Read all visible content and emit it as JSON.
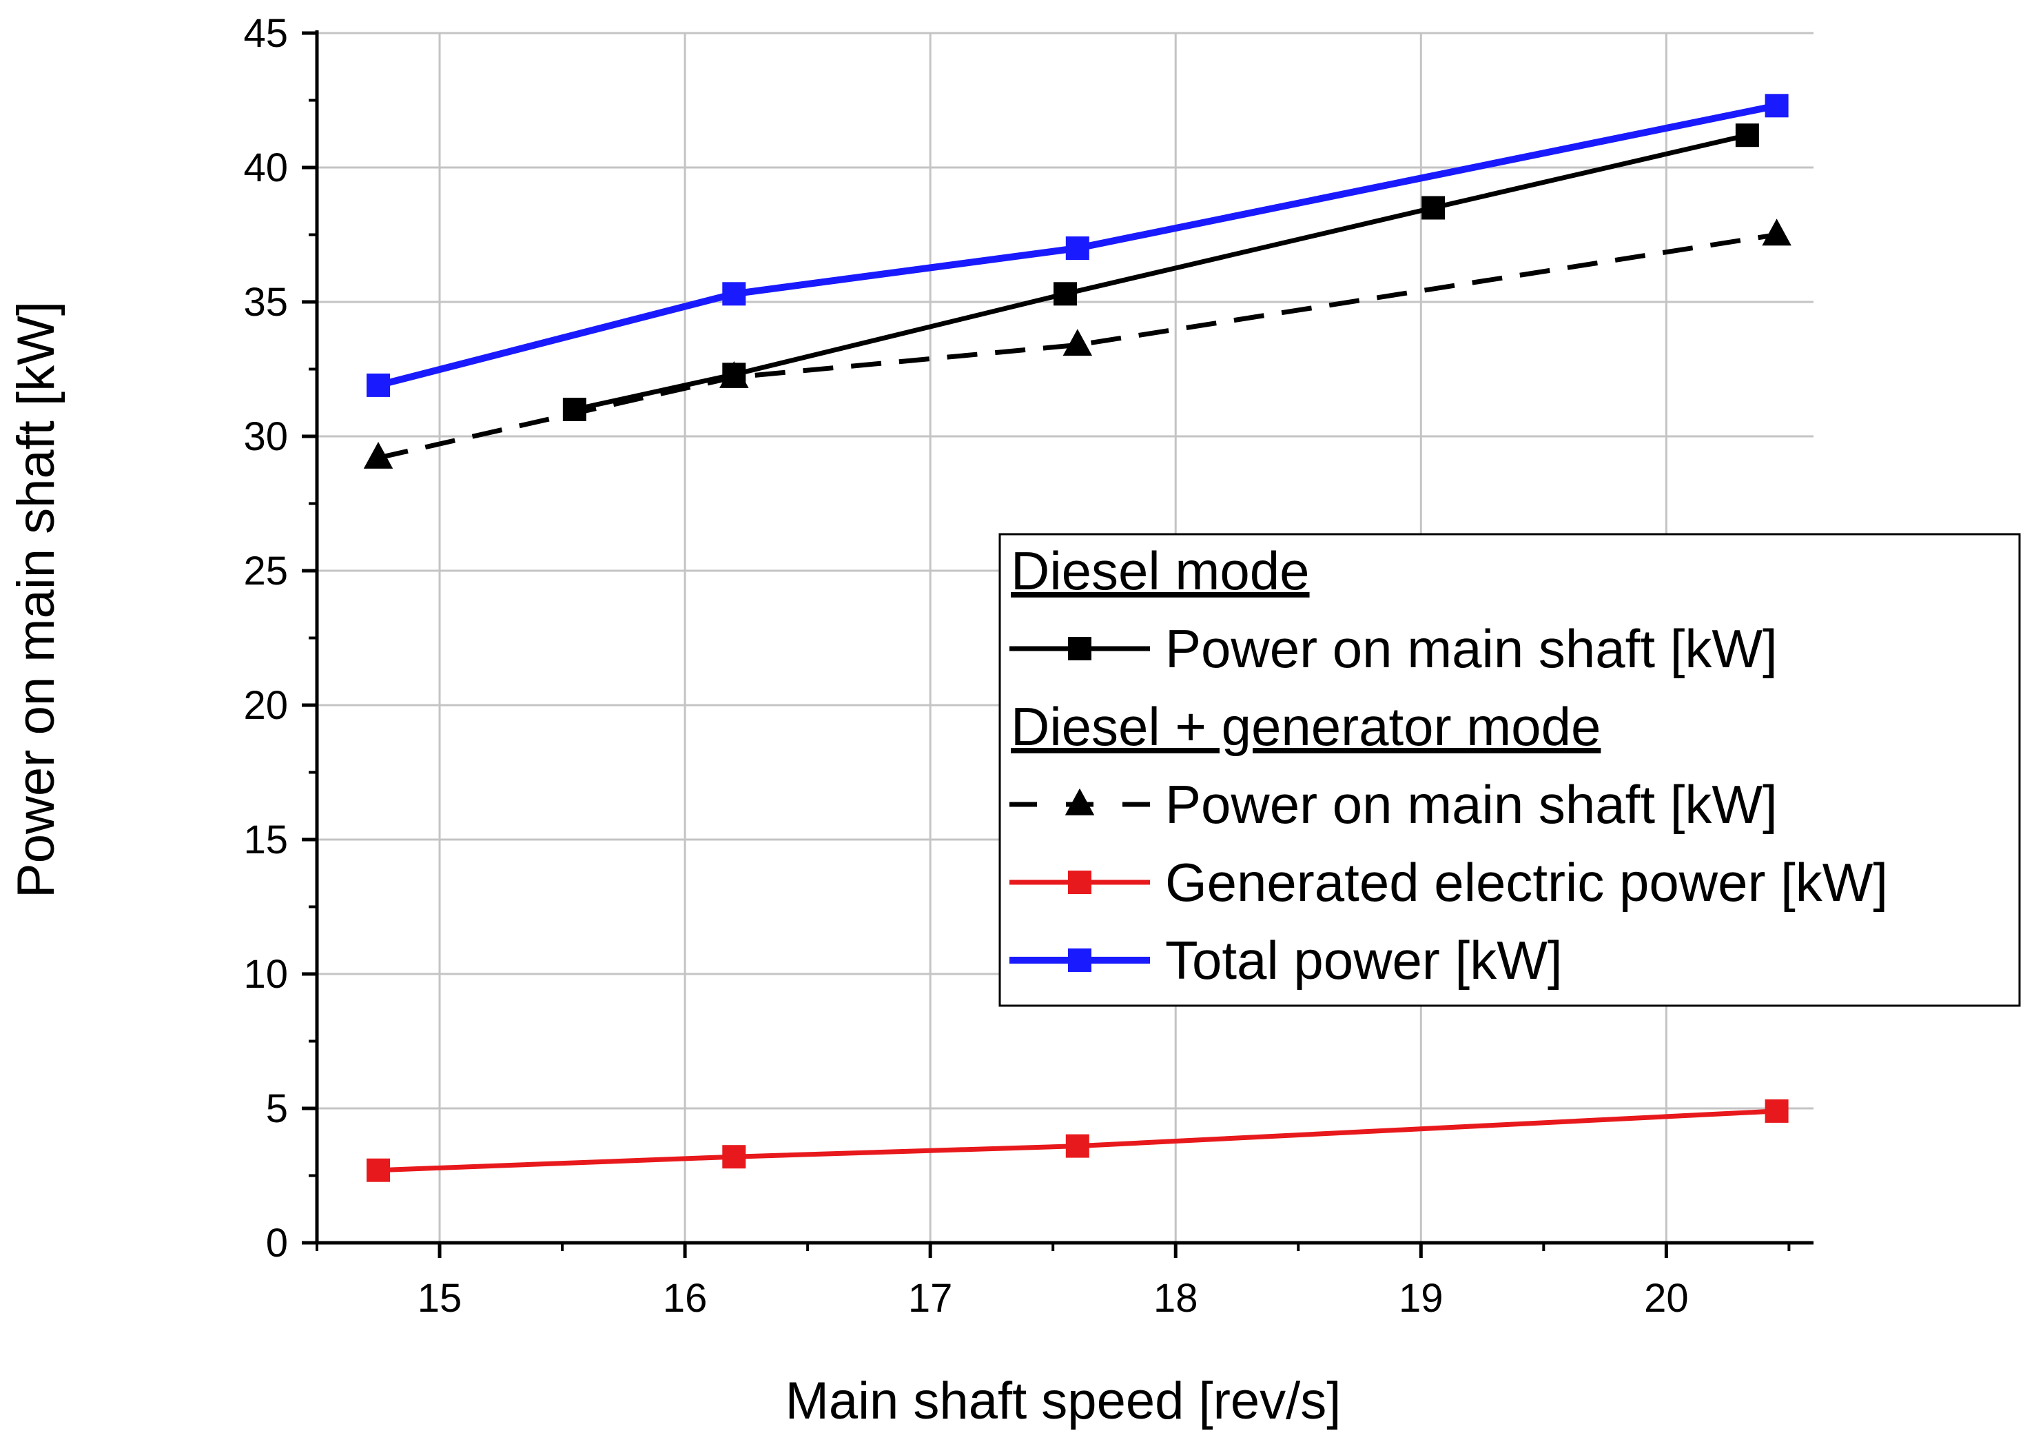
{
  "chart_data": {
    "type": "line",
    "title": "",
    "xlabel": "Main shaft speed [rev/s]",
    "ylabel": "Power on main shaft [kW]",
    "xlim": [
      14.5,
      20.6
    ],
    "ylim": [
      0,
      45
    ],
    "xticks": [
      15,
      16,
      17,
      18,
      19,
      20
    ],
    "xtick_labels": [
      "15",
      "16",
      "17",
      "18",
      "19",
      "20"
    ],
    "yticks": [
      0,
      5,
      10,
      15,
      20,
      25,
      30,
      35,
      40,
      45
    ],
    "ytick_labels": [
      "0",
      "5",
      "10",
      "15",
      "20",
      "25",
      "30",
      "35",
      "40",
      "45"
    ],
    "grid": true,
    "legend_position": "right-middle",
    "legend": {
      "groups": [
        {
          "heading": "Diesel mode",
          "entries": [
            0
          ]
        },
        {
          "heading": "Diesel + generator mode",
          "entries": [
            1,
            2,
            3
          ]
        }
      ]
    },
    "series": [
      {
        "name": "Power on main shaft [kW]",
        "group": "Diesel mode",
        "color": "#000000",
        "marker": "square",
        "line_style": "solid",
        "x": [
          15.55,
          16.2,
          17.55,
          19.05,
          20.33
        ],
        "y": [
          31.0,
          32.3,
          35.3,
          38.5,
          41.2
        ]
      },
      {
        "name": "Power on main shaft [kW]",
        "group": "Diesel + generator mode",
        "color": "#000000",
        "marker": "triangle",
        "line_style": "dashed",
        "x": [
          14.75,
          16.2,
          17.6,
          20.45
        ],
        "y": [
          29.2,
          32.2,
          33.4,
          37.5
        ]
      },
      {
        "name": "Generated electric power [kW]",
        "group": "Diesel + generator mode",
        "color": "#e8191c",
        "marker": "square",
        "line_style": "solid",
        "x": [
          14.75,
          16.2,
          17.6,
          20.45
        ],
        "y": [
          2.7,
          3.2,
          3.6,
          4.9
        ]
      },
      {
        "name": "Total power  [kW]",
        "group": "Diesel + generator mode",
        "color": "#1a1aff",
        "marker": "square",
        "line_style": "solid",
        "x": [
          14.75,
          16.2,
          17.6,
          20.45
        ],
        "y": [
          31.9,
          35.3,
          37.0,
          42.3
        ]
      }
    ]
  }
}
